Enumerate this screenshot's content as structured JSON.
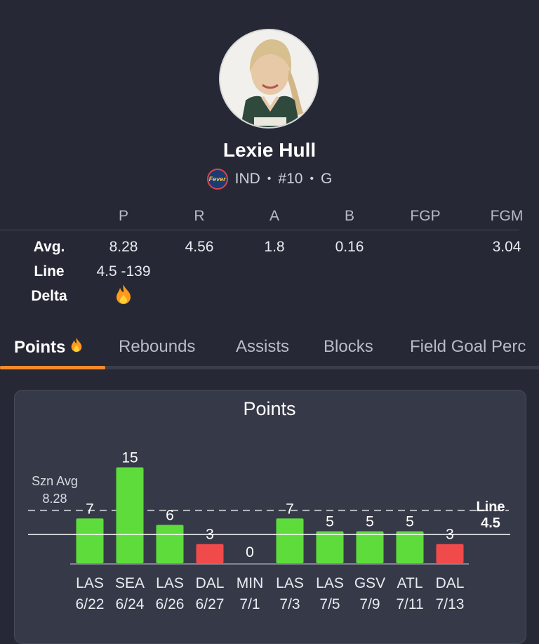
{
  "player": {
    "name": "Lexie Hull",
    "team": "IND",
    "number": "#10",
    "position": "G",
    "team_logo_text": "Fever"
  },
  "stats_table": {
    "headers": [
      "P",
      "R",
      "A",
      "B",
      "FGP",
      "FGM"
    ],
    "rows": {
      "avg_label": "Avg.",
      "avg_values": [
        "8.28",
        "4.56",
        "1.8",
        "0.16",
        "",
        "3.04"
      ],
      "line_label": "Line",
      "line_value": "4.5 -139",
      "delta_label": "Delta"
    }
  },
  "tabs": [
    {
      "label": "Points",
      "active": true
    },
    {
      "label": "Rebounds",
      "active": false
    },
    {
      "label": "Assists",
      "active": false
    },
    {
      "label": "Blocks",
      "active": false
    },
    {
      "label": "Field Goal Perc",
      "active": false
    }
  ],
  "colors": {
    "over": "#5ddc3c",
    "under": "#f04a4a",
    "accent": "#f38a2c",
    "background": "#262935",
    "card": "#363a48"
  },
  "chart_data": {
    "type": "bar",
    "title": "Points",
    "categories": [
      {
        "team": "LAS",
        "date": "6/22"
      },
      {
        "team": "SEA",
        "date": "6/24"
      },
      {
        "team": "LAS",
        "date": "6/26"
      },
      {
        "team": "DAL",
        "date": "6/27"
      },
      {
        "team": "MIN",
        "date": "7/1"
      },
      {
        "team": "LAS",
        "date": "7/3"
      },
      {
        "team": "LAS",
        "date": "7/5"
      },
      {
        "team": "GSV",
        "date": "7/9"
      },
      {
        "team": "ATL",
        "date": "7/11"
      },
      {
        "team": "DAL",
        "date": "7/13"
      }
    ],
    "values": [
      7,
      15,
      6,
      3,
      0,
      7,
      5,
      5,
      5,
      3
    ],
    "season_avg": {
      "label": "Szn Avg",
      "value": 8.28,
      "value_text": "8.28"
    },
    "line": {
      "label": "Line",
      "value": 4.5,
      "value_text": "4.5"
    }
  }
}
